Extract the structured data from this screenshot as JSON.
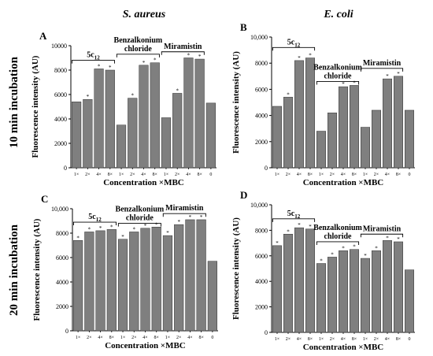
{
  "column_titles": [
    "S. aureus",
    "E. coli"
  ],
  "row_titles": [
    "10 min incubation",
    "20 min incubation"
  ],
  "axis_labels": {
    "y": "Fluorescence intensity (AU)",
    "x": "Concentration ×MBC"
  },
  "colors": {
    "bar": "#7f7f7f",
    "bar_edge": "#333333",
    "axis": "#000000"
  },
  "chart_data": [
    {
      "type": "bar",
      "panel": "A",
      "column_title": "S. aureus",
      "row_title": "10 min incubation",
      "ylabel": "Fluorescence intensity (AU)",
      "xlabel": "Concentration ×MBC",
      "ylim": [
        0,
        10000
      ],
      "yticks": [
        0,
        2000,
        4000,
        6000,
        8000,
        10000
      ],
      "ytick_labels": [
        "0",
        "2000",
        "4000",
        "6000",
        "8000",
        "10000"
      ],
      "categories": [
        "1×",
        "2×",
        "4×",
        "8×",
        "1×",
        "2×",
        "4×",
        "8×",
        "1×",
        "2×",
        "4×",
        "8×",
        "0"
      ],
      "values": [
        5400,
        5600,
        8100,
        8000,
        3500,
        5700,
        8400,
        8600,
        4100,
        6100,
        9000,
        8900,
        5300
      ],
      "significant": [
        false,
        true,
        true,
        true,
        false,
        true,
        true,
        true,
        false,
        true,
        true,
        true,
        false
      ],
      "groups": [
        {
          "label": "5c",
          "sub": "12",
          "start": 0,
          "end": 3,
          "y": 8800
        },
        {
          "label": "Benzalkonium",
          "label2": "chloride",
          "start": 4,
          "end": 7,
          "y": 9300
        },
        {
          "label": "Miramistin",
          "start": 8,
          "end": 11,
          "y": 9500
        }
      ]
    },
    {
      "type": "bar",
      "panel": "B",
      "column_title": "E. coli",
      "row_title": "10 min incubation",
      "ylabel": "Fluorescence intensity (AU)",
      "xlabel": "Concentration ×MBC",
      "ylim": [
        0,
        10000
      ],
      "yticks": [
        0,
        2000,
        4000,
        6000,
        8000,
        10000
      ],
      "ytick_labels": [
        "0",
        "2000",
        "4000",
        "6000",
        "8000",
        "10,000"
      ],
      "categories": [
        "1×",
        "2×",
        "4×",
        "8×",
        "1×",
        "2×",
        "4×",
        "8×",
        "1×",
        "2×",
        "4×",
        "8×",
        "0"
      ],
      "values": [
        4700,
        5400,
        8200,
        8400,
        2800,
        4200,
        6200,
        6300,
        3100,
        4400,
        6800,
        7000,
        4400
      ],
      "significant": [
        false,
        true,
        true,
        true,
        false,
        false,
        true,
        true,
        false,
        false,
        true,
        true,
        false
      ],
      "groups": [
        {
          "label": "5c",
          "sub": "12",
          "start": 0,
          "end": 3,
          "y": 9200
        },
        {
          "label": "Benzalkonium",
          "label2": "chloride",
          "start": 4,
          "end": 7,
          "y": 6600
        },
        {
          "label": "Miramistin",
          "start": 8,
          "end": 11,
          "y": 7600
        }
      ]
    },
    {
      "type": "bar",
      "panel": "C",
      "column_title": "S. aureus",
      "row_title": "20 min incubation",
      "ylabel": "Fluorescence intensity (AU)",
      "xlabel": "Concentration ×MBC",
      "ylim": [
        0,
        10000
      ],
      "yticks": [
        0,
        2000,
        4000,
        6000,
        8000,
        10000
      ],
      "ytick_labels": [
        "0",
        "2000",
        "4000",
        "6000",
        "8000",
        "10,000"
      ],
      "categories": [
        "1×",
        "2×",
        "4×",
        "8×",
        "1×",
        "2×",
        "4×",
        "8×",
        "1×",
        "2×",
        "4×",
        "8×",
        "0"
      ],
      "values": [
        7400,
        8100,
        8200,
        8300,
        7500,
        8100,
        8400,
        8500,
        7800,
        8700,
        9100,
        9100,
        5700
      ],
      "significant": [
        true,
        true,
        true,
        true,
        true,
        true,
        true,
        true,
        true,
        true,
        true,
        true,
        false
      ],
      "groups": [
        {
          "label": "5c",
          "sub": "12",
          "start": 0,
          "end": 3,
          "y": 8900
        },
        {
          "label": "Benzalkonium",
          "label2": "chloride",
          "start": 4,
          "end": 7,
          "y": 8800
        },
        {
          "label": "Miramistin",
          "start": 8,
          "end": 11,
          "y": 9600
        }
      ]
    },
    {
      "type": "bar",
      "panel": "D",
      "column_title": "E. coli",
      "row_title": "20 min incubation",
      "ylabel": "Fluorescence intensity (AU)",
      "xlabel": "Concentration ×MBC",
      "ylim": [
        0,
        10000
      ],
      "yticks": [
        0,
        2000,
        4000,
        6000,
        8000,
        10000
      ],
      "ytick_labels": [
        "0",
        "2000",
        "4000",
        "6000",
        "8000",
        "10,000"
      ],
      "categories": [
        "1×",
        "2×",
        "4×",
        "8×",
        "1×",
        "2×",
        "4×",
        "8×",
        "1×",
        "2×",
        "4×",
        "8×",
        "0"
      ],
      "values": [
        6800,
        7700,
        8200,
        8100,
        5400,
        5900,
        6400,
        6500,
        5800,
        6400,
        7200,
        7100,
        4900
      ],
      "significant": [
        true,
        true,
        true,
        true,
        true,
        true,
        true,
        true,
        true,
        true,
        true,
        true,
        false
      ],
      "groups": [
        {
          "label": "5c",
          "sub": "12",
          "start": 0,
          "end": 3,
          "y": 8900
        },
        {
          "label": "Benzalkonium",
          "label2": "chloride",
          "start": 4,
          "end": 7,
          "y": 7100
        },
        {
          "label": "Miramistin",
          "start": 8,
          "end": 11,
          "y": 7700
        }
      ]
    }
  ]
}
